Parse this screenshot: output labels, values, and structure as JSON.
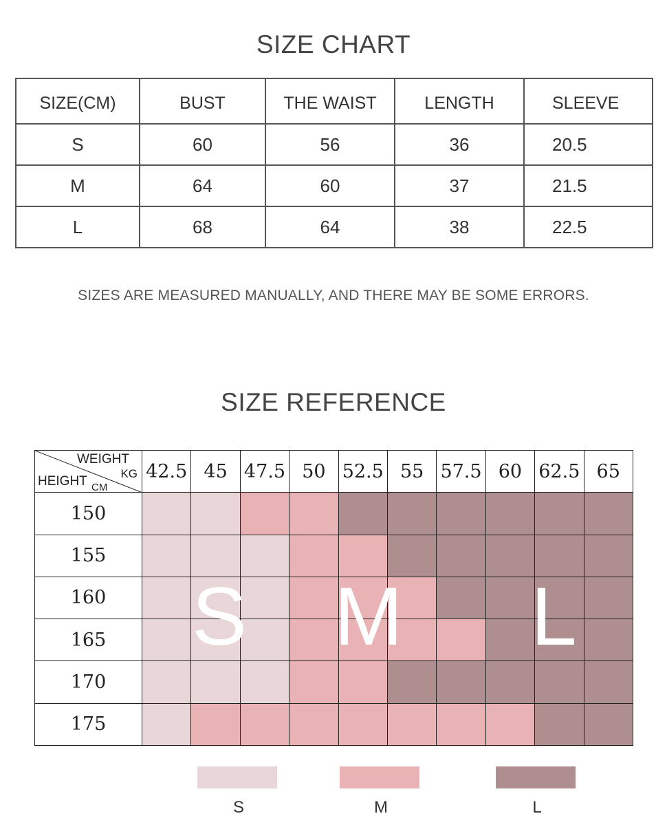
{
  "chart": {
    "title": "SIZE CHART",
    "headers": [
      "SIZE(CM)",
      "BUST",
      "THE WAIST",
      "LENGTH",
      "SLEEVE"
    ],
    "rows": [
      [
        "S",
        "60",
        "56",
        "36",
        "20.5"
      ],
      [
        "M",
        "64",
        "60",
        "37",
        "21.5"
      ],
      [
        "L",
        "68",
        "64",
        "38",
        "22.5"
      ]
    ],
    "note": "SIZES ARE MEASURED MANUALLY, AND THERE MAY BE SOME ERRORS."
  },
  "reference": {
    "title": "SIZE REFERENCE",
    "corner": {
      "weight": "WEIGHT",
      "kg": "KG",
      "height": "HEIGHT",
      "cm": "CM"
    },
    "weights": [
      "42.5",
      "45",
      "47.5",
      "50",
      "52.5",
      "55",
      "57.5",
      "60",
      "62.5",
      "65"
    ],
    "heights": [
      "150",
      "155",
      "160",
      "165",
      "170",
      "175"
    ],
    "grid": [
      [
        "S",
        "S",
        "M",
        "M",
        "L",
        "L",
        "L",
        "L",
        "L",
        "L"
      ],
      [
        "S",
        "S",
        "S",
        "M",
        "M",
        "L",
        "L",
        "L",
        "L",
        "L"
      ],
      [
        "S",
        "S",
        "S",
        "M",
        "M",
        "M",
        "L",
        "L",
        "L",
        "L"
      ],
      [
        "S",
        "S",
        "S",
        "M",
        "M",
        "M",
        "M",
        "L",
        "L",
        "L"
      ],
      [
        "S",
        "S",
        "S",
        "M",
        "M",
        "L",
        "L",
        "L",
        "L",
        "L"
      ],
      [
        "S",
        "M",
        "M",
        "M",
        "M",
        "M",
        "M",
        "M",
        "L",
        "L"
      ]
    ],
    "big_letters": {
      "s": "S",
      "m": "M",
      "l": "L"
    },
    "colors": {
      "S": "#e8d6d9",
      "M": "#e9b2b5",
      "L": "#ae8e8f"
    },
    "legend": [
      {
        "key": "S",
        "label": "S"
      },
      {
        "key": "M",
        "label": "M"
      },
      {
        "key": "L",
        "label": "L"
      }
    ]
  }
}
